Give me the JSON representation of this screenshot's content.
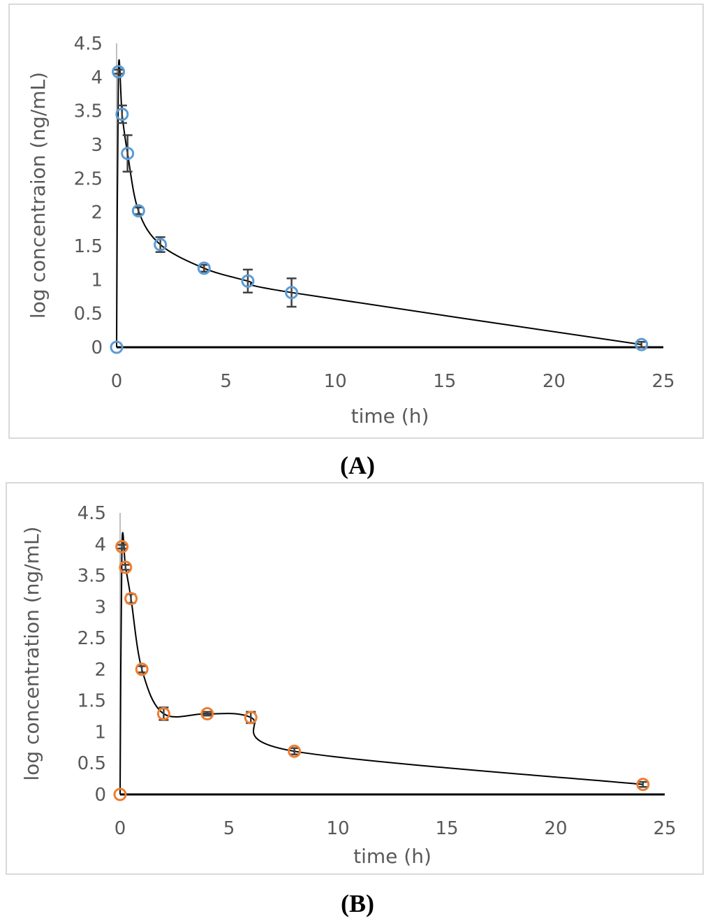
{
  "chart_data": [
    {
      "type": "scatter",
      "panel_label": "(A)",
      "xlabel": "time (h)",
      "ylabel": "log concentraion (ng/mL)",
      "xlim": [
        0,
        25
      ],
      "ylim": [
        0,
        4.5
      ],
      "xticks": [
        0,
        5,
        10,
        15,
        20,
        25
      ],
      "yticks": [
        0,
        0.5,
        1,
        1.5,
        2,
        2.5,
        3,
        3.5,
        4,
        4.5
      ],
      "marker_color": "#5b9bd5",
      "series": [
        {
          "name": "A",
          "x": [
            0,
            0.083,
            0.25,
            0.5,
            1,
            2,
            4,
            6,
            8,
            24
          ],
          "y": [
            0,
            4.08,
            3.45,
            2.87,
            2.02,
            1.52,
            1.17,
            0.98,
            0.81,
            0.04
          ],
          "err": [
            0,
            0.03,
            0.13,
            0.27,
            0.05,
            0.11,
            0.05,
            0.17,
            0.21,
            0.04
          ]
        }
      ]
    },
    {
      "type": "scatter",
      "panel_label": "(B)",
      "xlabel": "time (h)",
      "ylabel": "log concentration (ng/mL)",
      "xlim": [
        0,
        25
      ],
      "ylim": [
        0,
        4.5
      ],
      "xticks": [
        0,
        5,
        10,
        15,
        20,
        25
      ],
      "yticks": [
        0,
        0.5,
        1,
        1.5,
        2,
        2.5,
        3,
        3.5,
        4,
        4.5
      ],
      "marker_color": "#ed7d31",
      "series": [
        {
          "name": "B",
          "x": [
            0,
            0.083,
            0.25,
            0.5,
            1,
            2,
            4,
            6,
            8,
            24
          ],
          "y": [
            0,
            3.96,
            3.63,
            3.13,
            2.0,
            1.29,
            1.29,
            1.23,
            0.69,
            0.16
          ],
          "err": [
            0,
            0.03,
            0.04,
            0.07,
            0.05,
            0.1,
            0.03,
            0.09,
            0.05,
            0.04
          ]
        }
      ]
    }
  ]
}
